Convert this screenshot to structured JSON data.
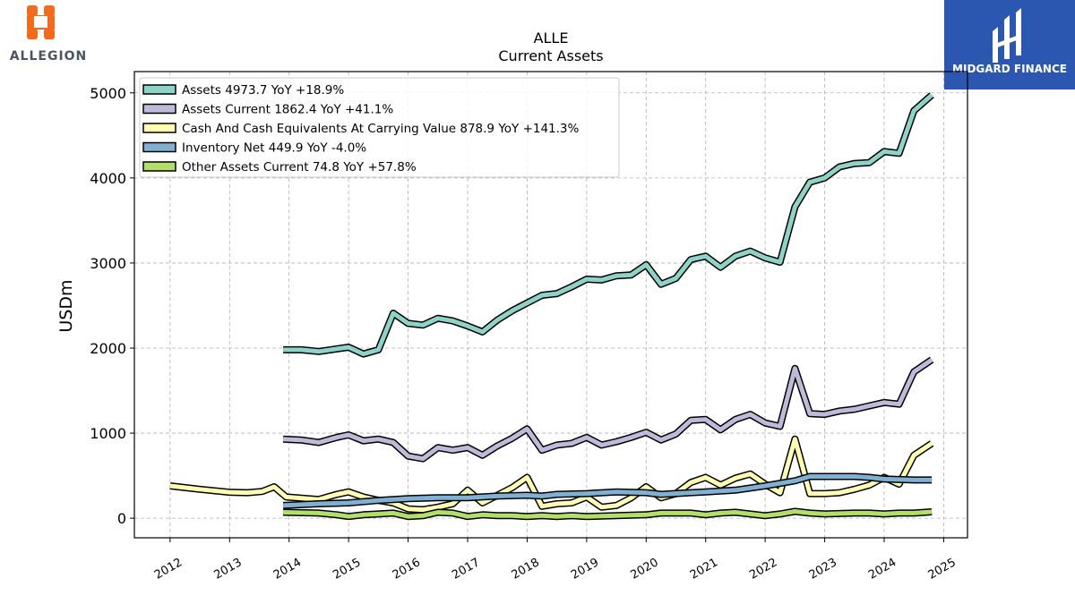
{
  "logos": {
    "left_text": "ALLEGION",
    "right_text": "MIDGARD FINANCE",
    "left_color": "#f26b1d",
    "right_bg": "#2b57b0"
  },
  "chart_data": {
    "type": "line",
    "title": "ALLE",
    "subtitle": "Current  Assets",
    "ylabel": "USDm",
    "xlabel": "",
    "xlim": [
      2011.4,
      2025.4
    ],
    "ylim": [
      -230,
      5250
    ],
    "yticks": [
      0,
      1000,
      2000,
      3000,
      4000,
      5000
    ],
    "xticks": [
      2012,
      2013,
      2014,
      2015,
      2016,
      2017,
      2018,
      2019,
      2020,
      2021,
      2022,
      2023,
      2024,
      2025
    ],
    "grid": true,
    "legend_position": "top-left",
    "series": [
      {
        "name": "Assets",
        "legend": "Assets  4973.7 YoY +18.9%",
        "color": "#8dd3c7",
        "points": [
          [
            2013.9,
            1980
          ],
          [
            2014.2,
            1980
          ],
          [
            2014.5,
            1960
          ],
          [
            2014.8,
            1990
          ],
          [
            2015.0,
            2010
          ],
          [
            2015.25,
            1930
          ],
          [
            2015.5,
            1980
          ],
          [
            2015.75,
            2410
          ],
          [
            2016.0,
            2290
          ],
          [
            2016.25,
            2270
          ],
          [
            2016.5,
            2350
          ],
          [
            2016.75,
            2320
          ],
          [
            2017.0,
            2260
          ],
          [
            2017.25,
            2190
          ],
          [
            2017.5,
            2330
          ],
          [
            2017.75,
            2440
          ],
          [
            2018.0,
            2530
          ],
          [
            2018.25,
            2620
          ],
          [
            2018.5,
            2640
          ],
          [
            2018.75,
            2720
          ],
          [
            2019.0,
            2810
          ],
          [
            2019.25,
            2800
          ],
          [
            2019.5,
            2850
          ],
          [
            2019.75,
            2860
          ],
          [
            2020.0,
            2980
          ],
          [
            2020.25,
            2750
          ],
          [
            2020.5,
            2820
          ],
          [
            2020.75,
            3040
          ],
          [
            2021.0,
            3080
          ],
          [
            2021.25,
            2950
          ],
          [
            2021.5,
            3080
          ],
          [
            2021.75,
            3140
          ],
          [
            2022.0,
            3060
          ],
          [
            2022.25,
            3010
          ],
          [
            2022.5,
            3660
          ],
          [
            2022.75,
            3950
          ],
          [
            2023.0,
            4000
          ],
          [
            2023.25,
            4130
          ],
          [
            2023.5,
            4170
          ],
          [
            2023.75,
            4180
          ],
          [
            2024.0,
            4310
          ],
          [
            2024.25,
            4290
          ],
          [
            2024.5,
            4790
          ],
          [
            2024.8,
            4974
          ]
        ]
      },
      {
        "name": "Assets Current",
        "legend": "Assets Current  1862.4 YoY +41.1%",
        "color": "#bebada",
        "points": [
          [
            2013.9,
            930
          ],
          [
            2014.2,
            920
          ],
          [
            2014.5,
            890
          ],
          [
            2014.8,
            950
          ],
          [
            2015.0,
            980
          ],
          [
            2015.25,
            910
          ],
          [
            2015.5,
            930
          ],
          [
            2015.75,
            890
          ],
          [
            2016.0,
            730
          ],
          [
            2016.25,
            700
          ],
          [
            2016.5,
            830
          ],
          [
            2016.75,
            800
          ],
          [
            2017.0,
            830
          ],
          [
            2017.25,
            740
          ],
          [
            2017.5,
            850
          ],
          [
            2017.75,
            940
          ],
          [
            2018.0,
            1050
          ],
          [
            2018.25,
            800
          ],
          [
            2018.5,
            860
          ],
          [
            2018.75,
            880
          ],
          [
            2019.0,
            950
          ],
          [
            2019.25,
            860
          ],
          [
            2019.5,
            900
          ],
          [
            2019.75,
            950
          ],
          [
            2020.0,
            1010
          ],
          [
            2020.25,
            920
          ],
          [
            2020.5,
            990
          ],
          [
            2020.75,
            1150
          ],
          [
            2021.0,
            1160
          ],
          [
            2021.25,
            1040
          ],
          [
            2021.5,
            1160
          ],
          [
            2021.75,
            1220
          ],
          [
            2022.0,
            1120
          ],
          [
            2022.25,
            1080
          ],
          [
            2022.5,
            1760
          ],
          [
            2022.75,
            1230
          ],
          [
            2023.0,
            1220
          ],
          [
            2023.25,
            1260
          ],
          [
            2023.5,
            1280
          ],
          [
            2023.75,
            1320
          ],
          [
            2024.0,
            1360
          ],
          [
            2024.25,
            1340
          ],
          [
            2024.5,
            1720
          ],
          [
            2024.8,
            1862
          ]
        ]
      },
      {
        "name": "Cash And Cash Equivalents At Carrying Value",
        "legend": "Cash And Cash Equivalents At Carrying Value  878.9 YoY +141.3%",
        "color": "#ffffb3",
        "points": [
          [
            2012.0,
            380
          ],
          [
            2012.5,
            340
          ],
          [
            2013.0,
            305
          ],
          [
            2013.3,
            300
          ],
          [
            2013.55,
            315
          ],
          [
            2013.75,
            370
          ],
          [
            2013.95,
            250
          ],
          [
            2014.5,
            220
          ],
          [
            2014.8,
            280
          ],
          [
            2015.0,
            310
          ],
          [
            2015.25,
            250
          ],
          [
            2015.5,
            210
          ],
          [
            2015.75,
            180
          ],
          [
            2016.0,
            110
          ],
          [
            2016.25,
            100
          ],
          [
            2016.5,
            130
          ],
          [
            2016.75,
            170
          ],
          [
            2017.0,
            330
          ],
          [
            2017.25,
            180
          ],
          [
            2017.5,
            270
          ],
          [
            2017.75,
            360
          ],
          [
            2018.0,
            480
          ],
          [
            2018.25,
            140
          ],
          [
            2018.5,
            170
          ],
          [
            2018.75,
            180
          ],
          [
            2019.0,
            250
          ],
          [
            2019.25,
            130
          ],
          [
            2019.5,
            150
          ],
          [
            2019.75,
            240
          ],
          [
            2020.0,
            370
          ],
          [
            2020.25,
            240
          ],
          [
            2020.5,
            290
          ],
          [
            2020.75,
            420
          ],
          [
            2021.0,
            480
          ],
          [
            2021.25,
            390
          ],
          [
            2021.5,
            470
          ],
          [
            2021.75,
            520
          ],
          [
            2022.0,
            400
          ],
          [
            2022.25,
            300
          ],
          [
            2022.5,
            930
          ],
          [
            2022.75,
            290
          ],
          [
            2023.0,
            290
          ],
          [
            2023.25,
            300
          ],
          [
            2023.5,
            340
          ],
          [
            2023.75,
            390
          ],
          [
            2024.0,
            480
          ],
          [
            2024.25,
            400
          ],
          [
            2024.5,
            740
          ],
          [
            2024.8,
            879
          ]
        ]
      },
      {
        "name": "Inventory Net",
        "legend": "Inventory Net  449.9 YoY -4.0%",
        "color": "#80b1d3",
        "points": [
          [
            2013.9,
            150
          ],
          [
            2014.5,
            170
          ],
          [
            2015.0,
            180
          ],
          [
            2015.5,
            210
          ],
          [
            2016.0,
            230
          ],
          [
            2016.5,
            240
          ],
          [
            2017.0,
            240
          ],
          [
            2017.5,
            260
          ],
          [
            2018.0,
            270
          ],
          [
            2018.25,
            260
          ],
          [
            2018.5,
            280
          ],
          [
            2019.0,
            290
          ],
          [
            2019.5,
            310
          ],
          [
            2020.0,
            300
          ],
          [
            2020.25,
            280
          ],
          [
            2020.75,
            300
          ],
          [
            2021.0,
            310
          ],
          [
            2021.5,
            330
          ],
          [
            2022.0,
            380
          ],
          [
            2022.5,
            440
          ],
          [
            2022.75,
            490
          ],
          [
            2023.0,
            490
          ],
          [
            2023.5,
            490
          ],
          [
            2023.75,
            480
          ],
          [
            2024.0,
            460
          ],
          [
            2024.5,
            450
          ],
          [
            2024.8,
            450
          ]
        ]
      },
      {
        "name": "Other Assets Current",
        "legend": "Other Assets Current  74.8 YoY +57.8%",
        "color": "#b3de69",
        "points": [
          [
            2013.9,
            70
          ],
          [
            2014.5,
            60
          ],
          [
            2014.8,
            40
          ],
          [
            2015.0,
            20
          ],
          [
            2015.25,
            40
          ],
          [
            2015.5,
            50
          ],
          [
            2015.75,
            60
          ],
          [
            2016.0,
            20
          ],
          [
            2016.25,
            30
          ],
          [
            2016.5,
            70
          ],
          [
            2016.75,
            60
          ],
          [
            2017.0,
            20
          ],
          [
            2017.25,
            40
          ],
          [
            2017.5,
            30
          ],
          [
            2017.75,
            30
          ],
          [
            2018.0,
            20
          ],
          [
            2018.25,
            30
          ],
          [
            2018.5,
            20
          ],
          [
            2018.75,
            30
          ],
          [
            2019.0,
            20
          ],
          [
            2019.5,
            30
          ],
          [
            2020.0,
            40
          ],
          [
            2020.25,
            60
          ],
          [
            2020.75,
            60
          ],
          [
            2021.0,
            40
          ],
          [
            2021.25,
            60
          ],
          [
            2021.5,
            70
          ],
          [
            2022.0,
            30
          ],
          [
            2022.25,
            50
          ],
          [
            2022.5,
            80
          ],
          [
            2022.75,
            60
          ],
          [
            2023.0,
            50
          ],
          [
            2023.5,
            60
          ],
          [
            2023.75,
            60
          ],
          [
            2024.0,
            50
          ],
          [
            2024.25,
            60
          ],
          [
            2024.5,
            60
          ],
          [
            2024.8,
            75
          ]
        ]
      }
    ]
  }
}
